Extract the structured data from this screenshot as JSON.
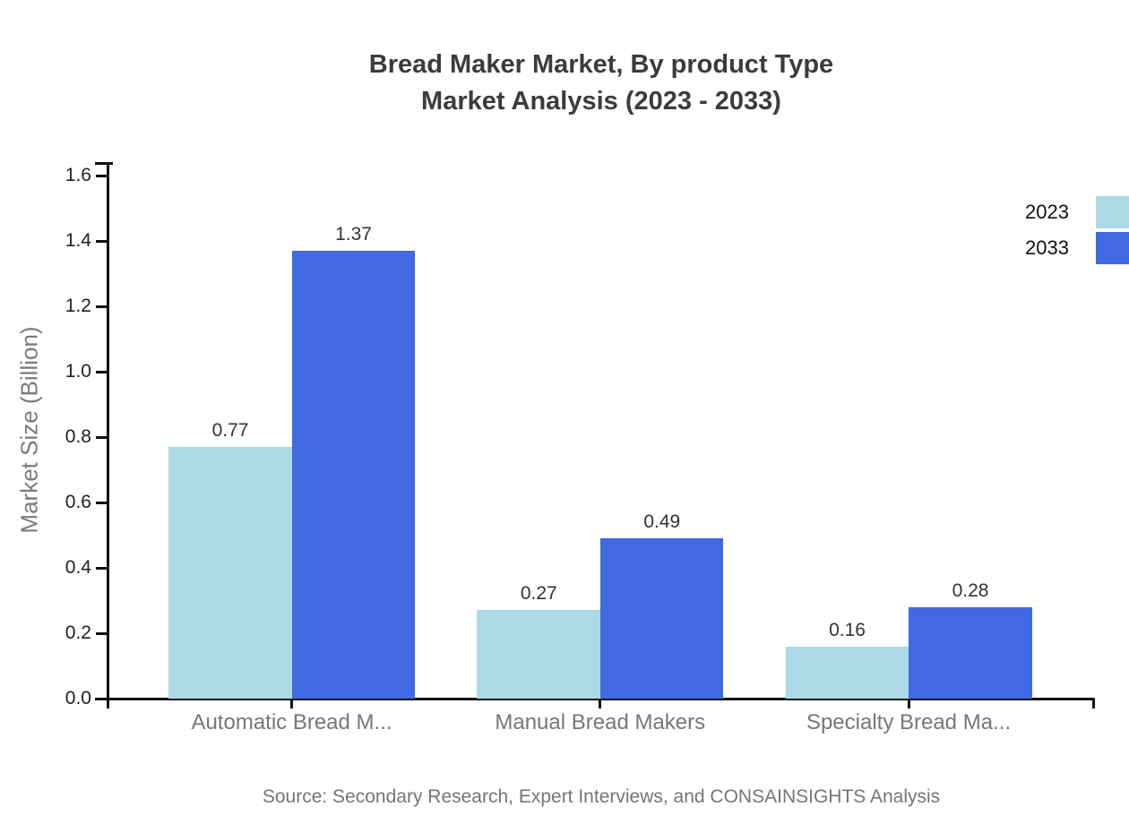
{
  "title": {
    "line1": "Bread Maker Market, By product Type",
    "line2": "Market Analysis (2023 - 2033)"
  },
  "source": "Source: Secondary Research, Expert Interviews, and CONSAINSIGHTS Analysis",
  "chart_data": {
    "type": "bar",
    "title": "Bread Maker Market, By product Type Market Analysis (2023 - 2033)",
    "categories": [
      "Automatic Bread M...",
      "Manual Bread Makers",
      "Specialty Bread Ma..."
    ],
    "series": [
      {
        "name": "2023",
        "color": "#ADD8E6",
        "values": [
          0.77,
          0.27,
          0.16
        ]
      },
      {
        "name": "2033",
        "color": "#4169E1",
        "values": [
          1.37,
          0.49,
          0.28
        ]
      }
    ],
    "xlabel": "",
    "ylabel": "Market Size (Billion)",
    "ylim": [
      0.0,
      1.6
    ],
    "yticks": [
      "0.0",
      "0.2",
      "0.4",
      "0.6",
      "0.8",
      "1.0",
      "1.2",
      "1.4",
      "1.6"
    ],
    "grid": false,
    "legend_position": "top-right",
    "value_labels": true,
    "value_label_format": "0.00"
  },
  "colors": {
    "series_2023": "#ADD8E6",
    "series_2033": "#4169E1",
    "axis": "#111111",
    "title_text": "#3b3b3b",
    "muted_text": "#767676",
    "tick_text": "#1f1f1f",
    "background": "#ffffff"
  }
}
